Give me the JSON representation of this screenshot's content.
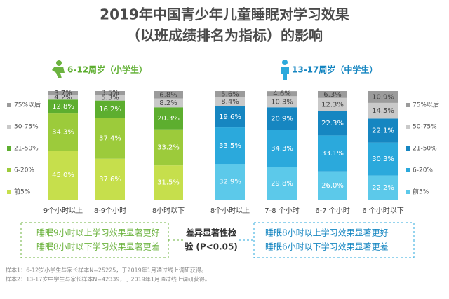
{
  "title": "2019年中国青少年儿童睡眠对学习效果",
  "subtitle": "（以班成绩排名为指标）的影响",
  "chart_data": [
    {
      "type": "bar",
      "stacked": true,
      "title": "6-12周岁（小学生）",
      "categories": [
        "9个小时以上",
        "8-9个小时",
        "8小时以下"
      ],
      "ylim": [
        0,
        100
      ],
      "legend": "left",
      "series": [
        {
          "name": "前5%",
          "color": "#c6df4c",
          "values": [
            45.0,
            37.6,
            31.5
          ],
          "value_labels": [
            "45.0%",
            "37.6%",
            "31.5%"
          ]
        },
        {
          "name": "6-20%",
          "color": "#9ccb3b",
          "values": [
            34.3,
            37.4,
            33.2
          ],
          "value_labels": [
            "34.3%",
            "37.4%",
            "33.2%"
          ]
        },
        {
          "name": "21-50%",
          "color": "#5dae2f",
          "values": [
            12.8,
            16.2,
            20.3
          ],
          "value_labels": [
            "12.8%",
            "16.2%",
            "20.3%"
          ]
        },
        {
          "name": "50-75%",
          "color": "#c9c9c9",
          "values": [
            4.2,
            5.3,
            8.2
          ],
          "value_labels": [
            "4.2%",
            "5.3%",
            "8.2%"
          ]
        },
        {
          "name": "75%以后",
          "color": "#9b9b9b",
          "values": [
            3.7,
            3.5,
            6.8
          ],
          "value_labels": [
            "3.7%",
            "3.5%",
            "6.8%"
          ]
        }
      ]
    },
    {
      "type": "bar",
      "stacked": true,
      "title": "13-17周岁（中学生）",
      "categories": [
        "8个小时以上",
        "7-8 个小时",
        "6-7 个小时",
        "6 个小时以下"
      ],
      "ylim": [
        0,
        100
      ],
      "legend": "right",
      "series": [
        {
          "name": "前5%",
          "color": "#5cc9ea",
          "values": [
            32.9,
            29.8,
            26.0,
            22.2
          ],
          "value_labels": [
            "32.9%",
            "29.8%",
            "26.0%",
            "22.2%"
          ]
        },
        {
          "name": "6-20%",
          "color": "#2ba9dc",
          "values": [
            33.5,
            34.3,
            33.1,
            30.3
          ],
          "value_labels": [
            "33.5%",
            "34.3%",
            "33.1%",
            "30.3%"
          ]
        },
        {
          "name": "21-50%",
          "color": "#1686c1",
          "values": [
            19.6,
            20.9,
            22.3,
            22.1
          ],
          "value_labels": [
            "19.6%",
            "20.9%",
            "22.3%",
            "22.1%"
          ]
        },
        {
          "name": "50-75%",
          "color": "#c9c9c9",
          "values": [
            8.4,
            10.3,
            12.3,
            14.5
          ],
          "value_labels": [
            "8.4%",
            "10.3%",
            "12.3%",
            "14.5%"
          ]
        },
        {
          "name": "75%以后",
          "color": "#9b9b9b",
          "values": [
            5.6,
            4.6,
            6.3,
            10.9
          ],
          "value_labels": [
            "5.6%",
            "4.6%",
            "6.3%",
            "10.9%"
          ]
        }
      ]
    }
  ],
  "summary": {
    "left": [
      "睡眠9小时以上学习效果显著更好",
      "睡眠8小时以下学习效果显著更差"
    ],
    "center": [
      "差异显著性检",
      "验 (P<0.05)"
    ],
    "right": [
      "睡眠8小时以上学习效果显著更好",
      "睡眠6小时以下学习效果显著更差"
    ]
  },
  "notes": [
    "样本1：6-12岁小学生与家长样本N=25225，于2019年1月通过线上调研获得。",
    "样本2：13-17岁中学生与家长样本N=42339，于2019年1月通过线上调研获得。"
  ]
}
